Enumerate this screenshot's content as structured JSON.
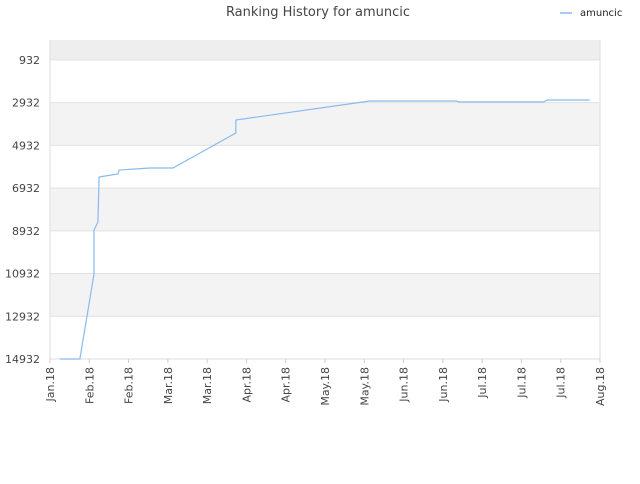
{
  "chart_data": {
    "type": "line",
    "title": "Ranking History for amuncic",
    "series": [
      {
        "name": "amuncic",
        "color": "#88bbee",
        "x": [
          0.25,
          0.76,
          1.12,
          1.12,
          1.22,
          1.25,
          1.4,
          1.73,
          1.76,
          2.54,
          3.13,
          4.73,
          4.73,
          8.14,
          10.33,
          10.43,
          12.57,
          12.65,
          13.74
        ],
        "values": [
          14932,
          14932,
          10955,
          8895,
          8520,
          6414,
          6367,
          6273,
          6086,
          5993,
          5993,
          4354,
          3745,
          2856,
          2856,
          2903,
          2903,
          2809,
          2809
        ]
      }
    ],
    "xlim": [
      0,
      14
    ],
    "xticks": [
      {
        "value": 0,
        "label": "Jan.18"
      },
      {
        "value": 1,
        "label": "Feb.18"
      },
      {
        "value": 2,
        "label": "Feb.18"
      },
      {
        "value": 3,
        "label": "Mar.18"
      },
      {
        "value": 4,
        "label": "Mar.18"
      },
      {
        "value": 5,
        "label": "Apr.18"
      },
      {
        "value": 6,
        "label": "Apr.18"
      },
      {
        "value": 7,
        "label": "May.18"
      },
      {
        "value": 8,
        "label": "May.18"
      },
      {
        "value": 9,
        "label": "Jun.18"
      },
      {
        "value": 10,
        "label": "Jun.18"
      },
      {
        "value": 11,
        "label": "Jul.18"
      },
      {
        "value": 12,
        "label": "Jul.18"
      },
      {
        "value": 13,
        "label": "Jul.18"
      },
      {
        "value": 14,
        "label": "Aug.18"
      }
    ],
    "ylim": [
      14932,
      0
    ],
    "yticks": [
      932,
      2932,
      4932,
      6932,
      8932,
      10932,
      12932,
      14932
    ],
    "y_inverted": true,
    "grid": true,
    "legend": "top-right"
  }
}
